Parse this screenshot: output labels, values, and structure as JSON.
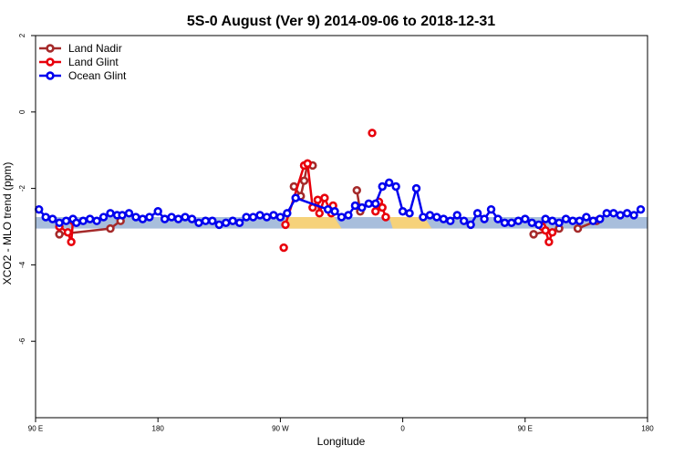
{
  "chart_data": {
    "type": "scatter",
    "title": "5S-0 August (Ver 9)   2014-09-06 to 2018-12-31",
    "xlabel": "Longitude",
    "ylabel": "XCO2 - MLO trend (ppm)",
    "xlim": [
      90,
      450
    ],
    "ylim": [
      -8,
      2
    ],
    "x_ticks": [
      {
        "value": 90,
        "label": "90 E"
      },
      {
        "value": 162,
        "label": "180"
      },
      {
        "value": 234,
        "label": "90 W"
      },
      {
        "value": 306,
        "label": "0"
      },
      {
        "value": 378,
        "label": "90 E"
      },
      {
        "value": 450,
        "label": "180"
      }
    ],
    "y_ticks": [
      {
        "value": 2,
        "label": "2"
      },
      {
        "value": 0,
        "label": "0"
      },
      {
        "value": -2,
        "label": "-2"
      },
      {
        "value": -4,
        "label": "-4"
      },
      {
        "value": -6,
        "label": "-6"
      }
    ],
    "legend_position": "top-left",
    "background_band": {
      "y_range": [
        -3.05,
        -2.75
      ],
      "ocean_color": "#a8bedc",
      "land_color": "#f6d27a",
      "land_segments": [
        [
          237,
          270
        ],
        [
          298,
          323
        ]
      ]
    },
    "series": [
      {
        "name": "Land Nadir",
        "color": "#a52a2a",
        "x": [
          104,
          134,
          140,
          242,
          246,
          248,
          250,
          253,
          279,
          281,
          383,
          398,
          409,
          420
        ],
        "y": [
          -3.2,
          -3.05,
          -2.85,
          -1.95,
          -2.2,
          -1.8,
          -1.35,
          -1.4,
          -2.05,
          -2.6,
          -3.2,
          -3.05,
          -3.05,
          -2.85
        ],
        "connect_runs": [
          [
            0,
            1
          ],
          [
            1,
            2
          ],
          [
            3,
            4,
            5,
            6,
            7
          ],
          [
            8,
            9
          ],
          [
            10,
            11
          ],
          [
            12,
            13
          ]
        ]
      },
      {
        "name": "Land Glint",
        "color": "#e8000b",
        "x": [
          104,
          109,
          111,
          112,
          236,
          237,
          248,
          250,
          253,
          256,
          257,
          260,
          263,
          264,
          265,
          288,
          290,
          292,
          294,
          296,
          388,
          390,
          392,
          394
        ],
        "y": [
          -3.0,
          -3.15,
          -3.4,
          -2.85,
          -3.55,
          -2.95,
          -1.4,
          -1.35,
          -2.5,
          -2.3,
          -2.65,
          -2.25,
          -2.55,
          -2.65,
          -2.45,
          -0.55,
          -2.6,
          -2.35,
          -2.5,
          -2.75,
          -3.0,
          -3.1,
          -3.4,
          -3.15
        ],
        "connect_runs": [
          [
            0,
            1,
            2,
            3
          ],
          [
            5,
            6,
            7,
            8,
            9,
            10,
            11,
            12,
            13,
            14
          ],
          [
            16,
            17,
            18,
            19
          ],
          [
            20,
            21,
            22,
            23
          ]
        ]
      },
      {
        "name": "Ocean Glint",
        "color": "#0000ee",
        "x": [
          92,
          96,
          100,
          104,
          108,
          112,
          114,
          118,
          122,
          126,
          130,
          134,
          138,
          141,
          145,
          149,
          153,
          157,
          162,
          166,
          170,
          174,
          178,
          182,
          186,
          190,
          194,
          198,
          202,
          206,
          210,
          214,
          218,
          222,
          226,
          230,
          234,
          238,
          243,
          262,
          266,
          270,
          274,
          278,
          282,
          286,
          290,
          294,
          298,
          302,
          306,
          310,
          314,
          318,
          322,
          326,
          330,
          334,
          338,
          342,
          346,
          350,
          354,
          358,
          362,
          366,
          370,
          374,
          378,
          382,
          386,
          390,
          394,
          398,
          402,
          406,
          410,
          414,
          418,
          422,
          426,
          430,
          434,
          438,
          442,
          446
        ],
        "y": [
          -2.55,
          -2.75,
          -2.8,
          -2.9,
          -2.85,
          -2.8,
          -2.9,
          -2.85,
          -2.8,
          -2.85,
          -2.75,
          -2.65,
          -2.7,
          -2.7,
          -2.65,
          -2.75,
          -2.8,
          -2.75,
          -2.6,
          -2.8,
          -2.75,
          -2.8,
          -2.75,
          -2.8,
          -2.9,
          -2.85,
          -2.85,
          -2.95,
          -2.9,
          -2.85,
          -2.9,
          -2.75,
          -2.75,
          -2.7,
          -2.75,
          -2.7,
          -2.75,
          -2.65,
          -2.25,
          -2.55,
          -2.6,
          -2.75,
          -2.7,
          -2.45,
          -2.5,
          -2.4,
          -2.4,
          -1.95,
          -1.85,
          -1.95,
          -2.6,
          -2.65,
          -2.0,
          -2.75,
          -2.7,
          -2.75,
          -2.8,
          -2.85,
          -2.7,
          -2.85,
          -2.95,
          -2.65,
          -2.8,
          -2.55,
          -2.8,
          -2.9,
          -2.9,
          -2.85,
          -2.8,
          -2.9,
          -2.95,
          -2.8,
          -2.85,
          -2.9,
          -2.8,
          -2.85,
          -2.85,
          -2.75,
          -2.85,
          -2.8,
          -2.65,
          -2.65,
          -2.7,
          -2.65,
          -2.7,
          -2.55
        ],
        "connect_runs": "all"
      }
    ]
  }
}
